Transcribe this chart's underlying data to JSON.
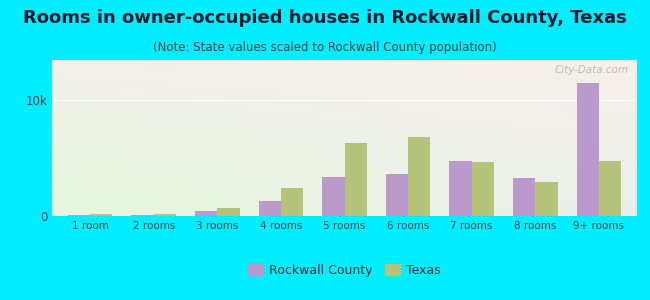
{
  "title": "Rooms in owner-occupied houses in Rockwall County, Texas",
  "subtitle": "(Note: State values scaled to Rockwall County population)",
  "categories": [
    "1 room",
    "2 rooms",
    "3 rooms",
    "4 rooms",
    "5 rooms",
    "6 rooms",
    "7 rooms",
    "8 rooms",
    "9+ rooms"
  ],
  "rockwall": [
    90,
    110,
    430,
    1300,
    3400,
    3600,
    4800,
    3300,
    11500
  ],
  "texas": [
    170,
    200,
    650,
    2400,
    6300,
    6800,
    4700,
    2900,
    4800
  ],
  "rockwall_color": "#bb99cc",
  "texas_color": "#b5c47a",
  "background_outer": "#00eeff",
  "ylim": [
    0,
    13500
  ],
  "ytick_labels": [
    "0",
    "10k"
  ],
  "ytick_values": [
    0,
    10000
  ],
  "bar_width": 0.35,
  "watermark": "City-Data.com",
  "legend_rockwall": "Rockwall County",
  "legend_texas": "Texas",
  "title_fontsize": 13,
  "subtitle_fontsize": 8.5
}
